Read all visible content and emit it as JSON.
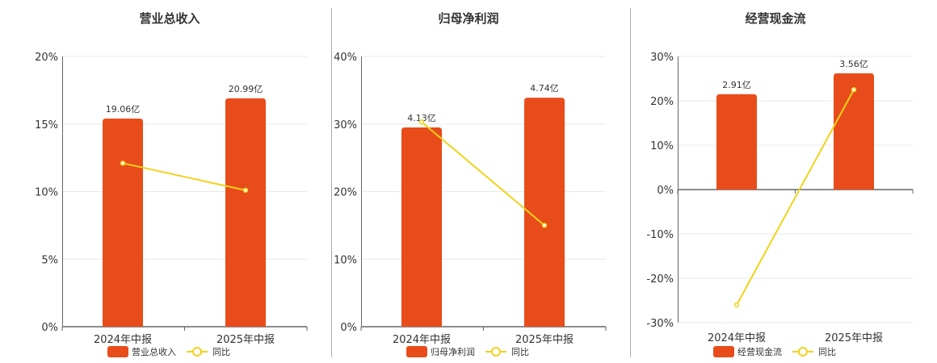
{
  "colors": {
    "bar": "#E84C1A",
    "line": "#F2D21B",
    "grid": "#E8E8E8",
    "axis": "#666666",
    "divider": "#AAAAAA"
  },
  "chart_data": [
    {
      "type": "bar",
      "title": "营业总收入",
      "categories": [
        "2024年中报",
        "2025年中报"
      ],
      "yticks": [
        "20%",
        "15%",
        "10%",
        "5%",
        "0%"
      ],
      "ylim": [
        0,
        20
      ],
      "series": [
        {
          "name": "营业总收入",
          "type": "bar",
          "values": [
            15.4,
            16.9
          ],
          "labels": [
            "19.06亿",
            "20.99亿"
          ]
        },
        {
          "name": "同比",
          "type": "line",
          "values": [
            12.1,
            10.1
          ]
        }
      ],
      "legend": "bottom",
      "grid": true
    },
    {
      "type": "bar",
      "title": "归母净利润",
      "categories": [
        "2024年中报",
        "2025年中报"
      ],
      "yticks": [
        "40%",
        "30%",
        "20%",
        "10%",
        "0%"
      ],
      "ylim": [
        0,
        40
      ],
      "series": [
        {
          "name": "归母净利润",
          "type": "bar",
          "values": [
            29.5,
            33.9
          ],
          "labels": [
            "4.13亿",
            "4.74亿"
          ]
        },
        {
          "name": "同比",
          "type": "line",
          "values": [
            30.3,
            15.0
          ]
        }
      ],
      "legend": "bottom",
      "grid": true
    },
    {
      "type": "bar",
      "title": "经营现金流",
      "categories": [
        "2024年中报",
        "2025年中报"
      ],
      "yticks": [
        "30%",
        "20%",
        "10%",
        "0%",
        "-10%",
        "-20%",
        "-30%"
      ],
      "ylim": [
        -30,
        30
      ],
      "series": [
        {
          "name": "经营现金流",
          "type": "bar",
          "values": [
            21.5,
            26.2
          ],
          "labels": [
            "2.91亿",
            "3.56亿"
          ]
        },
        {
          "name": "同比",
          "type": "line",
          "values": [
            -26.0,
            22.5
          ]
        }
      ],
      "legend": "bottom",
      "grid": true
    }
  ]
}
